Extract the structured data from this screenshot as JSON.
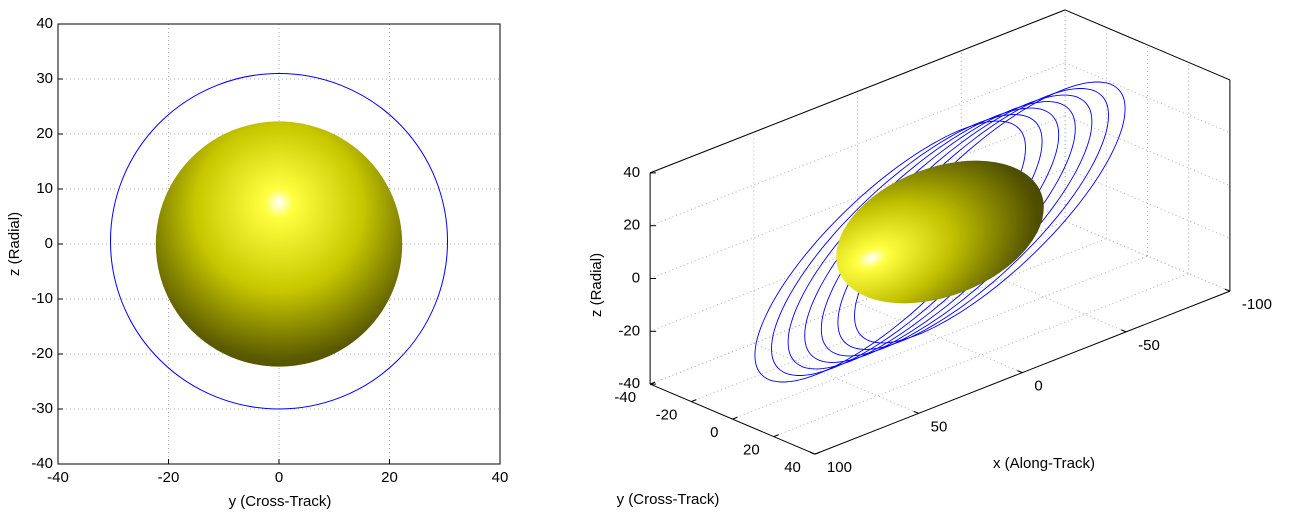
{
  "chart_data": [
    {
      "type": "orbit2d",
      "xlabel": "y (Cross-Track)",
      "ylabel": "z (Radial)",
      "xlim": [
        -40,
        40
      ],
      "ylim": [
        -40,
        40
      ],
      "xticks": [
        -40,
        -20,
        0,
        20,
        40
      ],
      "yticks": [
        -40,
        -30,
        -20,
        -10,
        0,
        10,
        20,
        30,
        40
      ],
      "grid": true,
      "orbit": {
        "center": [
          0,
          0.5
        ],
        "radius": 30.5,
        "color": "#0000ff"
      },
      "sphere": {
        "center": [
          0,
          0
        ],
        "radius": 22.3,
        "color": "#e6e600"
      }
    },
    {
      "type": "orbit3d",
      "xlabel": "x (Along-Track)",
      "ylabel": "y (Cross-Track)",
      "zlabel": "z (Radial)",
      "xlim": [
        -100,
        100
      ],
      "ylim": [
        -40,
        40
      ],
      "zlim": [
        -40,
        40
      ],
      "xticks": [
        -100,
        -50,
        0,
        50,
        100
      ],
      "yticks": [
        -40,
        -20,
        0,
        20,
        40
      ],
      "zticks": [
        -40,
        -20,
        0,
        20,
        40
      ],
      "grid": true,
      "ellipsoid": {
        "center": [
          0,
          0,
          0
        ],
        "radii": [
          45,
          22,
          22
        ],
        "color": "#e6e600"
      },
      "orbit": {
        "color": "#0000ff",
        "yz_radius": 30,
        "along_track_amplitude": 95,
        "loop_offsets": [
          -24,
          -16,
          -8,
          0,
          8,
          16,
          24
        ]
      }
    }
  ]
}
